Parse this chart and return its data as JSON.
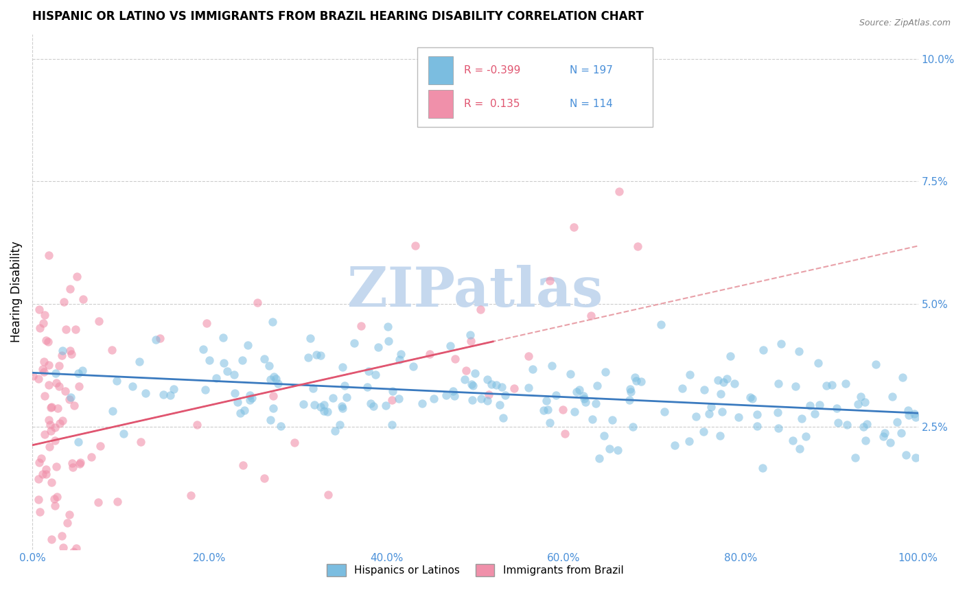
{
  "title": "HISPANIC OR LATINO VS IMMIGRANTS FROM BRAZIL HEARING DISABILITY CORRELATION CHART",
  "source": "Source: ZipAtlas.com",
  "ylabel": "Hearing Disability",
  "r_blue": -0.399,
  "n_blue": 197,
  "r_pink": 0.135,
  "n_pink": 114,
  "blue_color": "#7bbde0",
  "pink_color": "#f090aa",
  "trend_blue_color": "#3a7abf",
  "trend_pink_solid_color": "#e05570",
  "trend_pink_dash_color": "#e8a0a8",
  "watermark": "ZIPatlas",
  "watermark_color": "#c5d8ee",
  "title_fontsize": 12,
  "tick_label_color": "#4a90d9",
  "background_color": "#ffffff",
  "grid_color": "#cccccc",
  "xlim": [
    0.0,
    1.0
  ],
  "ylim": [
    0.0,
    0.105
  ],
  "yticks": [
    0.025,
    0.05,
    0.075,
    0.1
  ],
  "ytick_labels": [
    "2.5%",
    "5.0%",
    "7.5%",
    "10.0%"
  ],
  "xticks": [
    0.0,
    0.2,
    0.4,
    0.6,
    0.8,
    1.0
  ],
  "xtick_labels": [
    "0.0%",
    "20.0%",
    "40.0%",
    "60.0%",
    "80.0%",
    "100.0%"
  ],
  "legend_blue_label": "Hispanics or Latinos",
  "legend_pink_label": "Immigrants from Brazil",
  "legend_r_color": "#e05570",
  "legend_n_color": "#4a90d9"
}
